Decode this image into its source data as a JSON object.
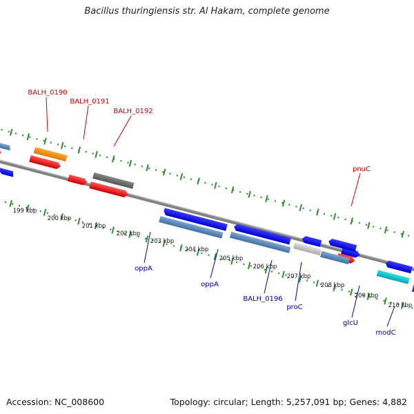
{
  "title": "Bacillus thuringiensis str. Al Hakam, complete genome",
  "footer": {
    "accession": "Accession: NC_008600",
    "summary": "Topology: circular; Length: 5,257,091 bp; Genes: 4,882"
  },
  "ticks": [
    "199 kbp",
    "200 kbp",
    "201 kbp",
    "202 kbp",
    "203 kbp",
    "204 kbp",
    "205 kbp",
    "206 kbp",
    "207 kbp",
    "208 kbp",
    "209 kbp",
    "210 kbp"
  ],
  "top_labels": [
    "BALH_0190",
    "BALH_0191",
    "BALH_0192",
    "pnuC"
  ],
  "bottom_labels": [
    "oppA",
    "oppA",
    "BALH_0196",
    "proC",
    "glcU",
    "modC"
  ],
  "colors": {
    "backbone": "#808080",
    "dotted_track": "#2e8b2e",
    "label_top": "#cc0000",
    "label_bottom": "#0000aa"
  }
}
